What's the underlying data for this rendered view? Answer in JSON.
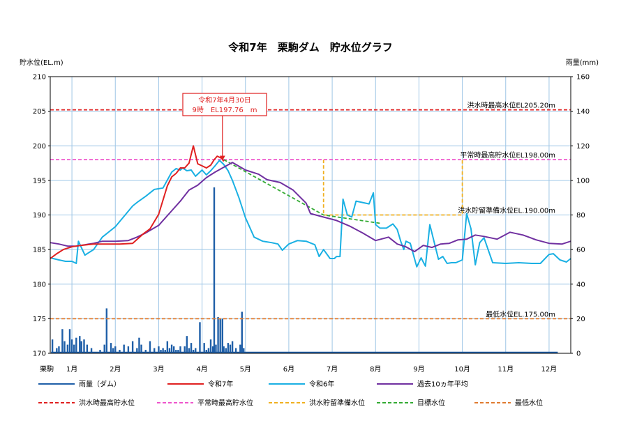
{
  "chart_data": {
    "type": "line",
    "title": "令和7年　栗駒ダム　貯水位グラフ",
    "ylabel": "貯水位(EL.m)",
    "y2label": "雨量(mm)",
    "ylim": [
      170,
      210
    ],
    "y2lim": [
      0,
      160
    ],
    "yticks": [
      170,
      175,
      180,
      185,
      190,
      195,
      200,
      205,
      210
    ],
    "y2ticks": [
      0,
      20,
      40,
      60,
      80,
      100,
      120,
      140,
      160
    ],
    "xlim": [
      0,
      12
    ],
    "location_label": "栗駒",
    "months": [
      "1月",
      "2月",
      "3月",
      "4月",
      "5月",
      "6月",
      "7月",
      "8月",
      "9月",
      "10月",
      "11月",
      "12月"
    ],
    "grid": true,
    "callout": {
      "line1": "令和7年4月30日",
      "line2": "9時　EL197.76　m",
      "x": 3.97,
      "y": 197.76
    },
    "ref_labels": [
      {
        "text": "洪水時最高水位EL205.20m",
        "y": 205.2
      },
      {
        "text": "平常時最高貯水位EL198.00m",
        "y": 198.0
      },
      {
        "text": "洪水貯留準備水位EL.190.00m",
        "y": 190.0
      },
      {
        "text": "最低水位EL.175.00m",
        "y": 175.0
      }
    ],
    "series": [
      {
        "key": "s_avg",
        "name": "過去10ヵ年平均",
        "color": "#7030a0",
        "dash": "",
        "x": [
          0,
          0.2,
          0.4,
          0.6,
          0.8,
          1,
          1.2,
          1.5,
          1.8,
          2,
          2.2,
          2.5,
          2.8,
          3,
          3.2,
          3.4,
          3.6,
          3.8,
          4,
          4.2,
          4.5,
          4.8,
          5,
          5.3,
          5.6,
          5.9,
          6,
          6.3,
          6.6,
          6.9,
          7.2,
          7.5,
          7.8,
          8,
          8.2,
          8.4,
          8.6,
          8.8,
          9,
          9.2,
          9.4,
          9.6,
          9.8,
          10,
          10.3,
          10.6,
          10.9,
          11.2,
          11.5,
          11.8,
          12
        ],
        "y": [
          186,
          185.8,
          185.5,
          185.5,
          185.7,
          185.9,
          186.2,
          186.2,
          186.3,
          186.8,
          187.4,
          188.5,
          190.6,
          192,
          193.6,
          194.3,
          195.4,
          196.2,
          196.9,
          197.6,
          196.5,
          195.9,
          195.1,
          194.7,
          193.6,
          191.7,
          190.2,
          189.7,
          189.2,
          188.4,
          187.4,
          186.3,
          186.8,
          185.8,
          185.4,
          184.7,
          185.6,
          185.3,
          185.8,
          185.9,
          186.4,
          186.5,
          187.1,
          186.9,
          186.5,
          187.5,
          187.1,
          186.4,
          185.9,
          185.8,
          186.2
        ]
      },
      {
        "key": "s_r6",
        "name": "令和6年",
        "color": "#1ab0e3",
        "dash": "",
        "x": [
          0,
          0.2,
          0.35,
          0.5,
          0.6,
          0.65,
          0.8,
          1,
          1.2,
          1.5,
          1.7,
          1.9,
          2,
          2.2,
          2.4,
          2.6,
          2.8,
          2.9,
          3,
          3.05,
          3.15,
          3.25,
          3.35,
          3.5,
          3.6,
          3.7,
          3.8,
          3.9,
          4,
          4.1,
          4.2,
          4.35,
          4.5,
          4.7,
          4.9,
          5.1,
          5.25,
          5.35,
          5.5,
          5.7,
          5.9,
          6.1,
          6.2,
          6.3,
          6.45,
          6.55,
          6.6,
          6.68,
          6.75,
          6.85,
          6.95,
          7.05,
          7.2,
          7.35,
          7.45,
          7.5,
          7.6,
          7.75,
          7.9,
          8,
          8.08,
          8.15,
          8.2,
          8.3,
          8.45,
          8.55,
          8.65,
          8.75,
          8.85,
          8.95,
          9.05,
          9.15,
          9.25,
          9.35,
          9.5,
          9.6,
          9.7,
          9.8,
          9.9,
          10,
          10.2,
          10.5,
          10.8,
          11.1,
          11.3,
          11.5,
          11.6,
          11.75,
          11.9,
          12
        ],
        "y": [
          183.8,
          183.5,
          183.3,
          183.3,
          183,
          186.2,
          184.2,
          185,
          186.8,
          188.3,
          189.8,
          191.3,
          191.8,
          192.7,
          193.7,
          193.9,
          196.2,
          196.7,
          196.5,
          196.8,
          196.4,
          196.5,
          195.6,
          196.5,
          195.8,
          196.4,
          197.1,
          197.9,
          197.3,
          196.4,
          195,
          192.5,
          189.6,
          186.8,
          186.2,
          186,
          185.8,
          184.9,
          185.8,
          186.3,
          186.2,
          185.7,
          184,
          185,
          183.7,
          183.7,
          184,
          184,
          192.3,
          190,
          189.7,
          192,
          191.8,
          191.6,
          193.2,
          188.6,
          188.1,
          188.1,
          188.7,
          187.9,
          186.2,
          185,
          186.2,
          185.9,
          182.5,
          183.8,
          182.6,
          188.6,
          186.1,
          183.6,
          184,
          183,
          183.1,
          183.1,
          183.5,
          190.2,
          188,
          182.8,
          186,
          186.7,
          183.1,
          183,
          183.1,
          183,
          183,
          184.3,
          184.4,
          183.5,
          183.2,
          183.7
        ]
      },
      {
        "key": "s_r7",
        "name": "令和7年",
        "color": "#e02020",
        "dash": "",
        "x": [
          0,
          0.15,
          0.3,
          0.5,
          0.7,
          1,
          1.3,
          1.6,
          1.9,
          2.15,
          2.3,
          2.5,
          2.7,
          2.8,
          2.9,
          3,
          3.1,
          3.2,
          3.3,
          3.4,
          3.5,
          3.6,
          3.7,
          3.78,
          3.85,
          3.95,
          4
        ],
        "y": [
          183.7,
          184.4,
          185,
          185.4,
          185.6,
          185.8,
          185.8,
          185.8,
          185.9,
          187.3,
          188,
          190.1,
          194.2,
          195.5,
          196,
          196.8,
          196.8,
          197.5,
          200,
          197.4,
          197.1,
          196.8,
          197.2,
          198,
          198.5,
          198.2,
          197.76
        ]
      },
      {
        "key": "s_bar",
        "name": "雨量（ダム）",
        "color": "#1f5fa8",
        "dash": "",
        "type": "bar",
        "x": [
          0.05,
          0.15,
          0.2,
          0.28,
          0.33,
          0.4,
          0.45,
          0.5,
          0.55,
          0.6,
          0.68,
          0.72,
          0.78,
          0.85,
          0.95,
          1.15,
          1.25,
          1.3,
          1.4,
          1.45,
          1.5,
          1.6,
          1.7,
          1.8,
          1.9,
          2.0,
          2.05,
          2.1,
          2.2,
          2.3,
          2.4,
          2.5,
          2.55,
          2.6,
          2.65,
          2.7,
          2.75,
          2.8,
          2.85,
          2.9,
          2.95,
          3.0,
          3.1,
          3.15,
          3.2,
          3.25,
          3.3,
          3.35,
          3.45,
          3.55,
          3.6,
          3.65,
          3.7,
          3.75,
          3.78,
          3.82,
          3.87,
          3.92,
          3.97,
          4.0,
          4.05,
          4.1,
          4.15,
          4.2,
          4.28,
          4.38,
          4.42,
          4.46
        ],
        "y": [
          8,
          3,
          4,
          14,
          7,
          5,
          14,
          8,
          5,
          9,
          10,
          7,
          8,
          5,
          3,
          2,
          5,
          26,
          6,
          3,
          4,
          2,
          5,
          4,
          7,
          3,
          9,
          5,
          2,
          7,
          3,
          4,
          2,
          3,
          2,
          7,
          3,
          5,
          4,
          2,
          2,
          4,
          4,
          10,
          3,
          6,
          2,
          3,
          18,
          6,
          2,
          3,
          8,
          4,
          96,
          5,
          21,
          20,
          20,
          4,
          3,
          6,
          5,
          7,
          3,
          5,
          24,
          3
        ]
      },
      {
        "key": "s_flood",
        "name": "洪水時最高貯水位",
        "color": "#e02020",
        "dash": "5,3",
        "x": [
          0,
          12
        ],
        "y": [
          205.2,
          205.2
        ]
      },
      {
        "key": "s_normal",
        "name": "平常時最高貯水位",
        "color": "#ee55cc",
        "dash": "5,3",
        "x": [
          0,
          6.3,
          6.3,
          9.5,
          9.5,
          12
        ],
        "y": [
          198,
          198,
          198,
          198,
          198,
          198
        ]
      },
      {
        "key": "s_prep",
        "name": "洪水貯留準備水位",
        "color": "#f0b020",
        "dash": "5,3",
        "x": [
          6.3,
          6.3,
          9.5,
          9.5
        ],
        "y": [
          198,
          190,
          190,
          198
        ]
      },
      {
        "key": "s_target",
        "name": "目標水位",
        "color": "#33aa33",
        "dash": "5,3",
        "x": [
          4.0,
          6.3,
          7.6
        ],
        "y": [
          198.0,
          190.0,
          188.8
        ]
      },
      {
        "key": "s_min",
        "name": "最低水位",
        "color": "#e07b30",
        "dash": "5,3",
        "x": [
          0,
          12
        ],
        "y": [
          175,
          175
        ]
      }
    ],
    "legend_rows": [
      [
        "s_bar",
        "s_r7",
        "s_r6",
        "s_avg"
      ],
      [
        "s_flood",
        "s_normal",
        "s_prep",
        "s_target",
        "s_min"
      ]
    ]
  }
}
